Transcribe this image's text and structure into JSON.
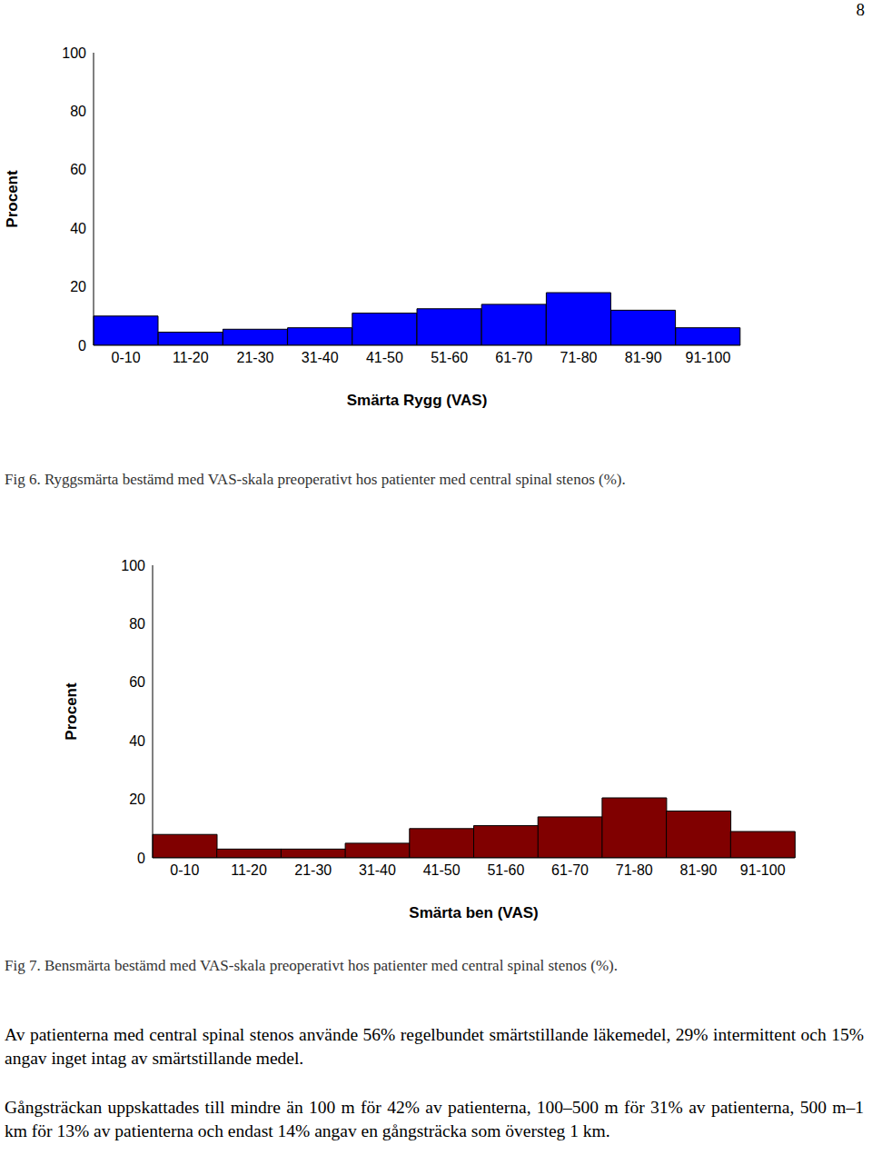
{
  "page_number": "8",
  "chart_data": [
    {
      "type": "bar",
      "categories": [
        "0-10",
        "11-20",
        "21-30",
        "31-40",
        "41-50",
        "51-60",
        "61-70",
        "71-80",
        "81-90",
        "91-100"
      ],
      "values": [
        10,
        4.5,
        5.5,
        6,
        11,
        12.5,
        14,
        18,
        12,
        6
      ],
      "color": "#0000ff",
      "xlabel": "Smärta Rygg (VAS)",
      "ylabel": "Procent",
      "ylim": [
        0,
        100
      ],
      "yticks": [
        0,
        20,
        40,
        60,
        80,
        100
      ],
      "grid": false
    },
    {
      "type": "bar",
      "categories": [
        "0-10",
        "11-20",
        "21-30",
        "31-40",
        "41-50",
        "51-60",
        "61-70",
        "71-80",
        "81-90",
        "91-100"
      ],
      "values": [
        8,
        3,
        3,
        5,
        10,
        11,
        14,
        20.5,
        16,
        9
      ],
      "color": "#800000",
      "xlabel": "Smärta ben (VAS)",
      "ylabel": "Procent",
      "ylim": [
        0,
        100
      ],
      "yticks": [
        0,
        20,
        40,
        60,
        80,
        100
      ],
      "grid": false
    }
  ],
  "captions": [
    "Fig 6. Ryggsmärta bestämd med VAS-skala preoperativt hos patienter med central spinal stenos (%).",
    "Fig 7. Bensmärta bestämd med VAS-skala preoperativt hos patienter med central spinal stenos (%)."
  ],
  "paragraphs": [
    "Av patienterna med central spinal stenos använde 56% regelbundet smärtstillande läkemedel, 29% intermittent och 15% angav inget intag av smärtstillande medel.",
    "Gångsträckan uppskattades till mindre än 100 m för 42% av patienterna, 100–500 m för 31% av patienterna, 500 m–1 km för 13% av patienterna och endast 14% angav en gångsträcka som översteg 1 km."
  ]
}
